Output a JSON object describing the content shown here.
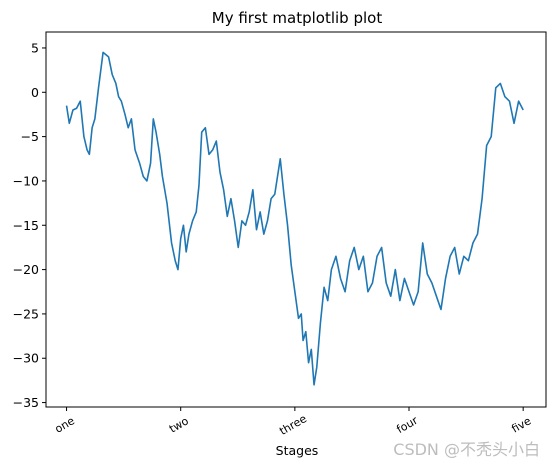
{
  "chart_data": {
    "type": "line",
    "title": "My first matplotlib plot",
    "xlabel": "Stages",
    "ylabel": "",
    "xlim": [
      -45,
      1050
    ],
    "ylim": [
      -35.5,
      6.8
    ],
    "xticks": [
      {
        "value": 0,
        "label": "one"
      },
      {
        "value": 250,
        "label": "two"
      },
      {
        "value": 500,
        "label": "three"
      },
      {
        "value": 750,
        "label": "four"
      },
      {
        "value": 1000,
        "label": "five"
      }
    ],
    "yticks": [
      {
        "value": 5,
        "label": "5"
      },
      {
        "value": 0,
        "label": "0"
      },
      {
        "value": -5,
        "label": "−5"
      },
      {
        "value": -10,
        "label": "−10"
      },
      {
        "value": -15,
        "label": "−15"
      },
      {
        "value": -20,
        "label": "−20"
      },
      {
        "value": -25,
        "label": "−25"
      },
      {
        "value": -30,
        "label": "−30"
      },
      {
        "value": -35,
        "label": "−35"
      }
    ],
    "grid": false,
    "legend": "none",
    "series": [
      {
        "color": "#1f77b4",
        "x": [
          0,
          6,
          14,
          22,
          30,
          38,
          45,
          50,
          56,
          62,
          70,
          80,
          92,
          100,
          108,
          114,
          120,
          128,
          135,
          142,
          150,
          160,
          168,
          176,
          184,
          190,
          196,
          204,
          210,
          220,
          230,
          238,
          244,
          250,
          256,
          262,
          268,
          276,
          284,
          290,
          296,
          304,
          312,
          320,
          328,
          336,
          344,
          352,
          360,
          368,
          376,
          384,
          392,
          400,
          408,
          416,
          424,
          432,
          440,
          448,
          456,
          462,
          468,
          476,
          484,
          492,
          500,
          508,
          514,
          518,
          524,
          530,
          536,
          542,
          548,
          556,
          564,
          572,
          580,
          590,
          600,
          610,
          620,
          630,
          640,
          650,
          660,
          670,
          680,
          690,
          700,
          710,
          720,
          730,
          740,
          750,
          760,
          770,
          780,
          790,
          800,
          810,
          820,
          830,
          840,
          850,
          860,
          870,
          880,
          890,
          900,
          910,
          920,
          930,
          940,
          950,
          960,
          970,
          980,
          990,
          1000
        ],
        "y": [
          -1.5,
          -3.5,
          -2.0,
          -1.8,
          -1.0,
          -5.0,
          -6.5,
          -7.0,
          -4.0,
          -3.0,
          0.5,
          4.5,
          4.0,
          2.0,
          1.0,
          -0.5,
          -1.0,
          -2.5,
          -4.0,
          -3.0,
          -6.5,
          -8.0,
          -9.5,
          -10.0,
          -8.0,
          -3.0,
          -4.5,
          -7.0,
          -9.5,
          -12.5,
          -17.0,
          -19.0,
          -20.0,
          -16.5,
          -15.0,
          -18.0,
          -16.0,
          -14.5,
          -13.5,
          -10.5,
          -4.5,
          -4.0,
          -7.0,
          -6.5,
          -5.5,
          -9.0,
          -11.0,
          -14.0,
          -12.0,
          -14.5,
          -17.5,
          -14.5,
          -15.0,
          -13.5,
          -11.0,
          -15.5,
          -13.5,
          -16.0,
          -14.5,
          -12.0,
          -11.5,
          -9.5,
          -7.5,
          -11.5,
          -15.0,
          -19.5,
          -22.5,
          -25.5,
          -25.0,
          -28.0,
          -27.0,
          -30.5,
          -29.0,
          -33.0,
          -31.0,
          -26.0,
          -22.0,
          -23.5,
          -20.0,
          -18.5,
          -21.0,
          -22.5,
          -19.0,
          -17.5,
          -20.0,
          -18.5,
          -22.5,
          -21.5,
          -18.5,
          -17.5,
          -21.5,
          -23.0,
          -20.0,
          -23.5,
          -21.0,
          -22.5,
          -24.0,
          -22.5,
          -17.0,
          -20.5,
          -21.5,
          -23.0,
          -24.5,
          -21.0,
          -18.5,
          -17.5,
          -20.5,
          -18.5,
          -19.0,
          -17.0,
          -16.0,
          -12.0,
          -6.0,
          -5.0,
          0.5,
          1.0,
          -0.5,
          -1.0,
          -3.5,
          -1.0,
          -2.0
        ]
      }
    ]
  },
  "watermark": "CSDN @不秃头小白"
}
